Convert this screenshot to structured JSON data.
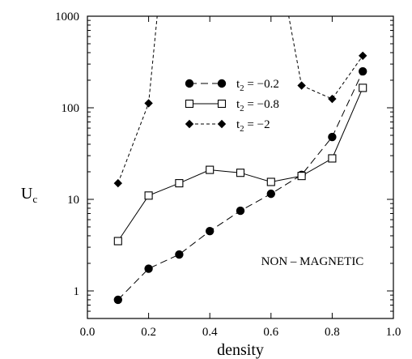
{
  "chart_data": {
    "type": "line",
    "y_scale": "log",
    "xlabel": "density",
    "ylabel": "U",
    "ylabel_sub": "c",
    "xlim": [
      0.0,
      1.0
    ],
    "ylim": [
      0.5,
      1000
    ],
    "x_ticks": [
      0.0,
      0.2,
      0.4,
      0.6,
      0.8,
      1.0
    ],
    "x_tick_labels": [
      "0.0",
      "0.2",
      "0.4",
      "0.6",
      "0.8",
      "1.0"
    ],
    "y_ticks": [
      1,
      10,
      100,
      1000
    ],
    "y_tick_labels": [
      "1",
      "10",
      "100",
      "1000"
    ],
    "grid": false,
    "legend_position": "upper-center",
    "annotation": "NON – MAGNETIC",
    "series": [
      {
        "name": "t₂ = −0.2",
        "legend_prefix": "t",
        "legend_sub": "2",
        "legend_suffix": " = −0.2",
        "marker": "filled-circle",
        "line_style": "long-dash",
        "x": [
          0.1,
          0.2,
          0.3,
          0.4,
          0.5,
          0.6,
          0.7,
          0.8,
          0.9
        ],
        "values": [
          0.8,
          1.75,
          2.5,
          4.5,
          7.5,
          11.5,
          18.5,
          48,
          250
        ]
      },
      {
        "name": "t₂ = −0.8",
        "legend_prefix": "t",
        "legend_sub": "2",
        "legend_suffix": " = −0.8",
        "marker": "open-square",
        "line_style": "solid",
        "x": [
          0.1,
          0.2,
          0.3,
          0.4,
          0.5,
          0.6,
          0.7,
          0.8,
          0.9
        ],
        "values": [
          3.5,
          11,
          15,
          21,
          19.5,
          15.5,
          18,
          28,
          165
        ]
      },
      {
        "name": "t₂ = −2",
        "legend_prefix": "t",
        "legend_sub": "2",
        "legend_suffix": " = −2",
        "marker": "filled-diamond",
        "line_style": "short-dash",
        "x": [
          0.1,
          0.2,
          0.7,
          0.8,
          0.9
        ],
        "values": [
          15,
          112,
          175,
          125,
          370
        ],
        "off_scale_segments": [
          {
            "from": [
              0.2,
              112
            ],
            "to_x": 0.228
          },
          {
            "from": [
              0.7,
              175
            ],
            "to_x": 0.658
          }
        ]
      }
    ]
  }
}
